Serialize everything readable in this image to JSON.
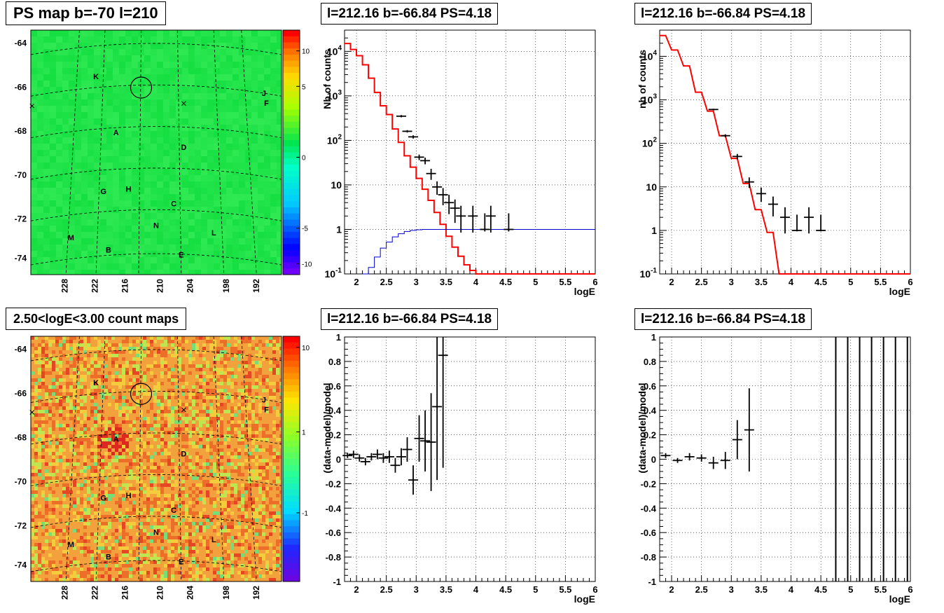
{
  "titles": {
    "map_top": "PS map b=-70 l=210",
    "map_bottom": "2.50<logE<3.00 count maps",
    "spec1": "l=212.16 b=-66.84 PS=4.18",
    "spec2": "l=212.16 b=-66.84 PS=4.18",
    "res1": "l=212.16 b=-66.84 PS=4.18",
    "res2": "l=212.16 b=-66.84 PS=4.18"
  },
  "colors": {
    "model": "#ff0000",
    "background": "#0000cc",
    "data": "#000000",
    "map_top_fill": "#22e44a",
    "map_bottom_fill": "#f2a13c"
  },
  "maps": {
    "lat_ticks": [
      "-64",
      "-66",
      "-68",
      "-70",
      "-72",
      "-74"
    ],
    "lon_ticks": [
      "228",
      "222",
      "216",
      "210",
      "204",
      "198",
      "192"
    ],
    "source_labels": [
      "K",
      "J",
      "F",
      "A",
      "D",
      "G",
      "H",
      "C",
      "N",
      "M",
      "L",
      "B",
      "E"
    ],
    "palette_top": {
      "type": "linear",
      "ticks": [
        "10",
        "5",
        "0",
        "-5",
        "-10"
      ],
      "range": [
        -12.5,
        12.5
      ]
    },
    "palette_bottom": {
      "type": "log",
      "ticks": [
        "10",
        "1",
        "10",
        "-1"
      ],
      "range": [
        0.03,
        15
      ]
    }
  },
  "chart_data": [
    {
      "id": "spec1",
      "type": "line",
      "title": "l=212.16 b=-66.84 PS=4.18",
      "xlabel": "logE",
      "ylabel": "Nb of counts",
      "xlim": [
        1.8,
        6.0
      ],
      "ylim": [
        0.1,
        30000
      ],
      "yscale": "log",
      "grid": true,
      "xticks": [
        "2",
        "2.5",
        "3",
        "3.5",
        "4",
        "4.5",
        "5",
        "5.5",
        "6"
      ],
      "yticks": [
        "10^-1",
        "1",
        "10",
        "10^2",
        "10^3",
        "10^4"
      ],
      "series": [
        {
          "role": "model",
          "x": [
            1.8,
            1.9,
            2.0,
            2.1,
            2.2,
            2.3,
            2.4,
            2.5,
            2.6,
            2.7,
            2.8,
            2.9,
            3.0,
            3.1,
            3.2,
            3.3,
            3.4,
            3.5,
            3.6,
            3.7,
            3.8,
            3.9,
            4.0,
            4.1,
            4.2,
            6.0
          ],
          "y": [
            15000,
            11000,
            8000,
            5000,
            2500,
            1200,
            600,
            380,
            180,
            90,
            45,
            25,
            14,
            8,
            4.5,
            2.4,
            1.3,
            0.7,
            0.4,
            0.25,
            0.16,
            0.12,
            0.1,
            0.1,
            0.1,
            0.1
          ]
        },
        {
          "role": "background",
          "x": [
            2.1,
            2.2,
            2.3,
            2.4,
            2.5,
            2.6,
            2.7,
            2.8,
            2.9,
            3.0,
            3.1,
            3.2,
            3.3,
            3.4,
            6.0
          ],
          "y": [
            0.1,
            0.14,
            0.24,
            0.38,
            0.52,
            0.68,
            0.8,
            0.9,
            0.95,
            0.98,
            1.0,
            1.0,
            1.0,
            1.0,
            1.0
          ]
        },
        {
          "role": "data",
          "x": [
            2.75,
            2.85,
            2.95,
            3.05,
            3.15,
            3.25,
            3.35,
            3.45,
            3.55,
            3.65,
            3.75,
            3.95,
            4.15,
            4.25,
            4.55
          ],
          "y": [
            350,
            160,
            120,
            42,
            35,
            18,
            9,
            6,
            4,
            3,
            2,
            2,
            1,
            2,
            1
          ],
          "err_lo": [
            330,
            150,
            110,
            36,
            29,
            13,
            6,
            3.5,
            2.2,
            1.4,
            0.85,
            0.85,
            0.9,
            0.85,
            0.9
          ],
          "err_hi": [
            370,
            170,
            130,
            48,
            41,
            23,
            12,
            8.5,
            6,
            4.7,
            3.4,
            3.4,
            2.3,
            3.4,
            2.3
          ]
        }
      ]
    },
    {
      "id": "spec2",
      "type": "line",
      "title": "l=212.16 b=-66.84 PS=4.18",
      "xlabel": "logE",
      "ylabel": "nb of counts",
      "xlim": [
        1.8,
        6.0
      ],
      "ylim": [
        0.1,
        40000
      ],
      "yscale": "log",
      "grid": true,
      "xticks": [
        "2",
        "2.5",
        "3",
        "3.5",
        "4",
        "4.5",
        "5",
        "5.5",
        "6"
      ],
      "yticks": [
        "10^-1",
        "1",
        "10",
        "10^2",
        "10^3",
        "10^4"
      ],
      "series": [
        {
          "role": "model",
          "x": [
            1.8,
            2.0,
            2.2,
            2.4,
            2.6,
            2.8,
            3.0,
            3.2,
            3.4,
            3.6,
            3.8,
            6.0
          ],
          "y": [
            30000,
            14000,
            6000,
            1500,
            550,
            150,
            45,
            12,
            3,
            0.9,
            0.1,
            0.1
          ]
        },
        {
          "role": "data",
          "x": [
            2.7,
            2.9,
            3.1,
            3.3,
            3.5,
            3.7,
            3.9,
            4.1,
            4.3,
            4.5
          ],
          "y": [
            600,
            150,
            50,
            13,
            7,
            4,
            2,
            1,
            2,
            1
          ],
          "err_lo": [
            575,
            138,
            43,
            9.5,
            4.5,
            2.1,
            0.85,
            0.95,
            0.85,
            0.95
          ],
          "err_hi": [
            625,
            162,
            57,
            16.5,
            9.6,
            6,
            3.4,
            2.3,
            3.4,
            2.3
          ]
        }
      ]
    },
    {
      "id": "res1",
      "type": "scatter",
      "title": "l=212.16 b=-66.84 PS=4.18",
      "xlabel": "logE",
      "ylabel": "(data-model)/model",
      "xlim": [
        1.8,
        6.0
      ],
      "ylim": [
        -1,
        1
      ],
      "grid": true,
      "xticks": [
        "2",
        "2.5",
        "3",
        "3.5",
        "4",
        "4.5",
        "5",
        "5.5",
        "6"
      ],
      "yticks": [
        "-1",
        "-0.8",
        "-0.6",
        "-0.4",
        "-0.2",
        "0",
        "0.2",
        "0.4",
        "0.6",
        "0.8",
        "1"
      ],
      "series": [
        {
          "role": "data",
          "x": [
            1.85,
            1.95,
            2.05,
            2.15,
            2.25,
            2.35,
            2.45,
            2.55,
            2.65,
            2.75,
            2.85,
            2.95,
            3.05,
            3.15,
            3.25,
            3.35,
            3.45
          ],
          "y": [
            0.03,
            0.04,
            0.01,
            -0.02,
            0.02,
            0.04,
            0.01,
            0.02,
            -0.05,
            0.02,
            0.08,
            -0.17,
            0.17,
            0.15,
            0.14,
            0.43,
            0.85
          ],
          "err": [
            0.02,
            0.03,
            0.03,
            0.03,
            0.03,
            0.04,
            0.04,
            0.05,
            0.06,
            0.07,
            0.1,
            0.12,
            0.19,
            0.25,
            0.4,
            0.6,
            0.92
          ]
        }
      ]
    },
    {
      "id": "res2",
      "type": "scatter",
      "title": "l=212.16 b=-66.84 PS=4.18",
      "xlabel": "logE",
      "ylabel": "(data-model)/model",
      "xlim": [
        1.8,
        6.0
      ],
      "ylim": [
        -1,
        1
      ],
      "grid": true,
      "xticks": [
        "2",
        "2.5",
        "3",
        "3.5",
        "4",
        "4.5",
        "5",
        "5.5",
        "6"
      ],
      "yticks": [
        "-1",
        "-0.8",
        "-0.6",
        "-0.4",
        "-0.2",
        "0",
        "0.2",
        "0.4",
        "0.6",
        "0.8",
        "1"
      ],
      "series": [
        {
          "role": "data",
          "x": [
            1.9,
            2.1,
            2.3,
            2.5,
            2.7,
            2.9,
            3.1,
            3.3
          ],
          "y": [
            0.03,
            -0.01,
            0.02,
            0.01,
            -0.03,
            -0.01,
            0.16,
            0.24
          ],
          "err": [
            0.02,
            0.02,
            0.03,
            0.03,
            0.05,
            0.07,
            0.16,
            0.34
          ]
        },
        {
          "role": "data_full_range",
          "x": [
            4.75,
            4.95,
            5.15,
            5.35,
            5.55,
            5.75,
            5.95
          ]
        }
      ]
    }
  ]
}
